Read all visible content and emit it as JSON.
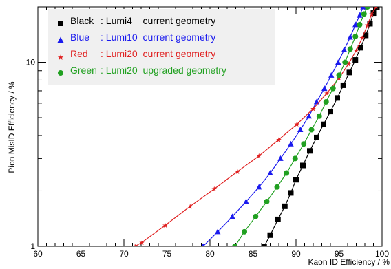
{
  "chart_data": {
    "type": "line",
    "xlabel": "Kaon ID Efficiency / %",
    "ylabel": "Pion MisID Efficiency / %",
    "xlim": [
      60,
      100
    ],
    "ylim": [
      1,
      20
    ],
    "yscale": "log",
    "grid": false,
    "legend_position": "top-left",
    "x_ticks": [
      "60",
      "65",
      "70",
      "75",
      "80",
      "85",
      "90",
      "95",
      "100"
    ],
    "y_ticks": [
      "1",
      "10"
    ],
    "series": [
      {
        "name": "Black",
        "label": ": Lumi4",
        "desc": "current geometry",
        "color": "#000000",
        "marker": "square",
        "points": [
          [
            86.3,
            1.0
          ],
          [
            87.0,
            1.15
          ],
          [
            87.9,
            1.4
          ],
          [
            88.7,
            1.65
          ],
          [
            89.4,
            1.95
          ],
          [
            90.0,
            2.3
          ],
          [
            90.8,
            2.75
          ],
          [
            91.6,
            3.3
          ],
          [
            92.4,
            3.9
          ],
          [
            93.2,
            4.6
          ],
          [
            94.0,
            5.4
          ],
          [
            94.8,
            6.4
          ],
          [
            95.5,
            7.5
          ],
          [
            96.2,
            8.8
          ],
          [
            96.9,
            10.3
          ],
          [
            97.5,
            12.0
          ],
          [
            98.1,
            14.0
          ],
          [
            98.6,
            16.2
          ],
          [
            99.0,
            18.5
          ],
          [
            99.4,
            20.0
          ]
        ]
      },
      {
        "name": "Blue",
        "label": ": Lumi10",
        "desc": "current geometry",
        "color": "#1a1aee",
        "marker": "triangle",
        "points": [
          [
            79.2,
            1.0
          ],
          [
            80.9,
            1.2
          ],
          [
            82.6,
            1.45
          ],
          [
            84.2,
            1.75
          ],
          [
            85.7,
            2.1
          ],
          [
            87.0,
            2.5
          ],
          [
            88.2,
            3.0
          ],
          [
            89.4,
            3.6
          ],
          [
            90.5,
            4.3
          ],
          [
            91.5,
            5.1
          ],
          [
            92.4,
            6.1
          ],
          [
            93.3,
            7.2
          ],
          [
            94.1,
            8.5
          ],
          [
            94.9,
            10.0
          ],
          [
            95.6,
            11.7
          ],
          [
            96.3,
            13.7
          ],
          [
            96.9,
            16.0
          ],
          [
            97.4,
            18.0
          ],
          [
            97.8,
            20.0
          ]
        ]
      },
      {
        "name": "Red",
        "label": ": Lumi20",
        "desc": "current geometry",
        "color": "#e02020",
        "marker": "star",
        "points": [
          [
            71.3,
            1.0
          ],
          [
            72.1,
            1.05
          ],
          [
            74.8,
            1.3
          ],
          [
            77.7,
            1.65
          ],
          [
            80.5,
            2.05
          ],
          [
            83.2,
            2.55
          ],
          [
            85.7,
            3.1
          ],
          [
            88.0,
            3.8
          ],
          [
            90.1,
            4.6
          ],
          [
            92.0,
            5.6
          ],
          [
            93.6,
            6.8
          ],
          [
            95.0,
            8.2
          ],
          [
            96.1,
            9.8
          ],
          [
            97.0,
            11.6
          ],
          [
            97.7,
            13.6
          ],
          [
            98.3,
            15.9
          ],
          [
            98.8,
            18.3
          ],
          [
            99.3,
            20.0
          ]
        ]
      },
      {
        "name": "Green",
        "label": ": Lumi20",
        "desc": "upgraded geometry",
        "color": "#20a020",
        "marker": "circle",
        "points": [
          [
            82.9,
            1.0
          ],
          [
            84.0,
            1.2
          ],
          [
            85.3,
            1.45
          ],
          [
            86.6,
            1.75
          ],
          [
            87.8,
            2.1
          ],
          [
            88.9,
            2.5
          ],
          [
            89.9,
            3.0
          ],
          [
            90.9,
            3.6
          ],
          [
            91.8,
            4.3
          ],
          [
            92.7,
            5.1
          ],
          [
            93.5,
            6.1
          ],
          [
            94.3,
            7.2
          ],
          [
            95.0,
            8.5
          ],
          [
            95.7,
            10.0
          ],
          [
            96.3,
            11.8
          ],
          [
            96.9,
            13.8
          ],
          [
            97.4,
            16.0
          ],
          [
            97.9,
            18.3
          ],
          [
            98.3,
            20.0
          ]
        ]
      }
    ]
  }
}
